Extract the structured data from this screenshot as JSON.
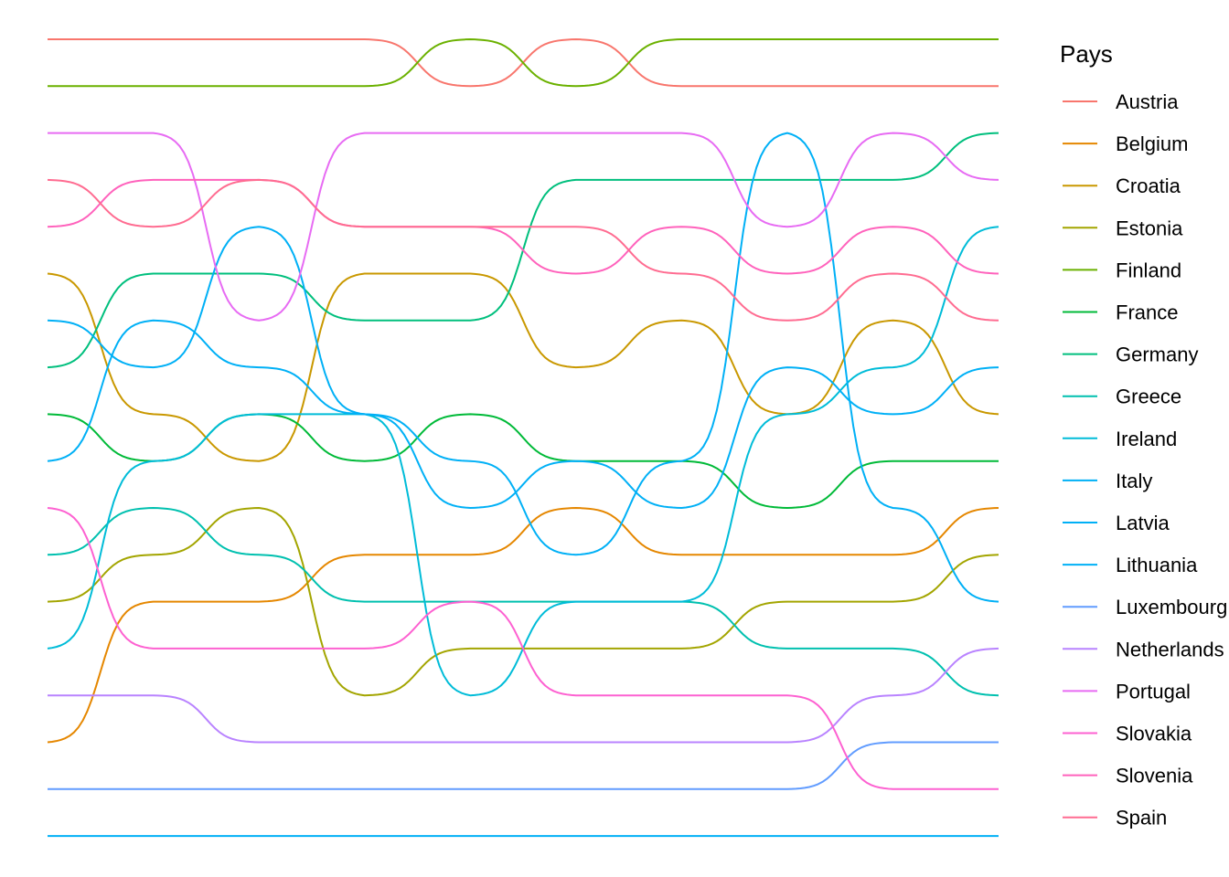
{
  "chart_data": {
    "type": "line",
    "legend": {
      "title": "Pays",
      "position": "right"
    },
    "grid": false,
    "axes_visible": false,
    "x": [
      1,
      2,
      3,
      4,
      5,
      6,
      7,
      8,
      9,
      10
    ],
    "ylim": [
      1,
      18
    ],
    "y_reversed": true,
    "series": [
      {
        "name": "Austria",
        "color": "#F8766D",
        "values": [
          1,
          1,
          1,
          1,
          2,
          1,
          2,
          2,
          2,
          2
        ]
      },
      {
        "name": "Belgium",
        "color": "#E58700",
        "values": [
          16,
          13,
          13,
          12,
          12,
          11,
          12,
          12,
          12,
          11
        ]
      },
      {
        "name": "Croatia",
        "color": "#C99800",
        "values": [
          6,
          9,
          10,
          6,
          6,
          8,
          7,
          9,
          7,
          9
        ]
      },
      {
        "name": "Estonia",
        "color": "#A3A500",
        "values": [
          13,
          12,
          11,
          15,
          14,
          14,
          14,
          13,
          13,
          12
        ]
      },
      {
        "name": "Finland",
        "color": "#6BB100",
        "values": [
          2,
          2,
          2,
          2,
          1,
          2,
          1,
          1,
          1,
          1
        ]
      },
      {
        "name": "France",
        "color": "#00BA38",
        "values": [
          9,
          10,
          9,
          10,
          9,
          10,
          10,
          11,
          10,
          10
        ]
      },
      {
        "name": "Germany",
        "color": "#00BF7D",
        "values": [
          8,
          6,
          6,
          7,
          7,
          4,
          4,
          4,
          4,
          3
        ]
      },
      {
        "name": "Greece",
        "color": "#00C0AF",
        "values": [
          12,
          11,
          12,
          13,
          13,
          13,
          13,
          14,
          14,
          15
        ]
      },
      {
        "name": "Ireland",
        "color": "#00BCD8",
        "values": [
          14,
          10,
          9,
          9,
          15,
          13,
          13,
          9,
          8,
          5
        ]
      },
      {
        "name": "Italy",
        "color": "#00B0F6",
        "values": [
          10,
          7,
          8,
          9,
          11,
          10,
          11,
          8,
          9,
          8
        ]
      },
      {
        "name": "Latvia",
        "color": "#00B0F6",
        "values": [
          7,
          8,
          5,
          9,
          10,
          12,
          10,
          3,
          11,
          13
        ]
      },
      {
        "name": "Lithuania",
        "color": "#00B0F6",
        "values": [
          18,
          18,
          18,
          18,
          18,
          18,
          18,
          18,
          18,
          18
        ]
      },
      {
        "name": "Luxembourg",
        "color": "#619CFF",
        "values": [
          17,
          17,
          17,
          17,
          17,
          17,
          17,
          17,
          16,
          16
        ]
      },
      {
        "name": "Netherlands",
        "color": "#B983FF",
        "values": [
          15,
          15,
          16,
          16,
          16,
          16,
          16,
          16,
          15,
          14
        ]
      },
      {
        "name": "Portugal",
        "color": "#E76BF3",
        "values": [
          3,
          3,
          7,
          3,
          3,
          3,
          3,
          5,
          3,
          4
        ]
      },
      {
        "name": "Slovakia",
        "color": "#FD61D1",
        "values": [
          11,
          14,
          14,
          14,
          13,
          15,
          15,
          15,
          17,
          17
        ]
      },
      {
        "name": "Slovenia",
        "color": "#FF62BC",
        "values": [
          5,
          4,
          4,
          5,
          5,
          6,
          5,
          6,
          5,
          6
        ]
      },
      {
        "name": "Spain",
        "color": "#FF6C91",
        "values": [
          4,
          5,
          4,
          5,
          5,
          5,
          6,
          7,
          6,
          7
        ]
      }
    ]
  }
}
